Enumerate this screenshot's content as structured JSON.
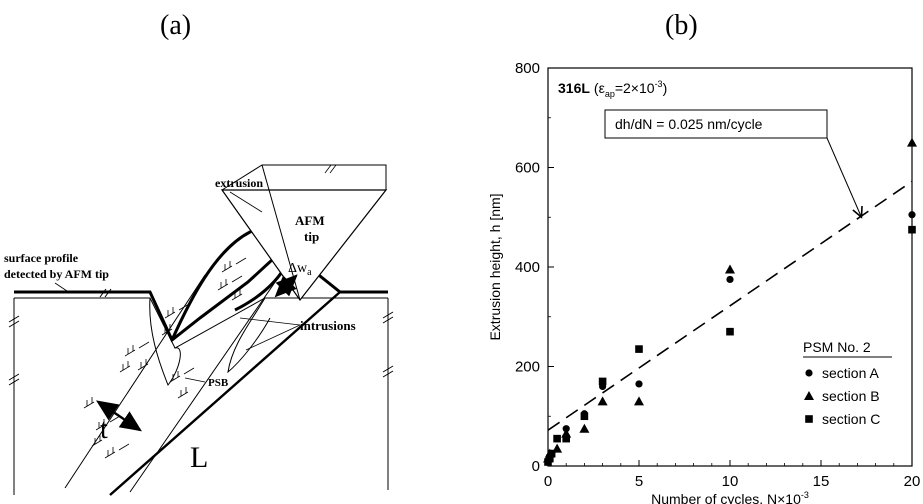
{
  "panels": {
    "a_label": "(a)",
    "b_label": "(b)"
  },
  "schematic": {
    "afm_tip": [
      "AFM",
      "tip"
    ],
    "extrusion": "extrusion",
    "surface_profile": [
      "surface profile",
      "detected by AFM tip"
    ],
    "delta_w": "Δw",
    "delta_w_sub": "a",
    "intrusions": "intrusions",
    "psb": "PSB",
    "t": "t",
    "L": "L"
  },
  "chart_data": {
    "type": "scatter",
    "title_material": "316L",
    "title_param_open": "(ε",
    "title_param_sub": "ap",
    "title_param_eq": "=2×10",
    "title_param_sup": "-3",
    "title_param_close": ")",
    "xlabel": "Number of cycles, N×10",
    "xlabel_sup": "-3",
    "ylabel": "Extrusion height, h [nm]",
    "xlim": [
      0,
      20
    ],
    "ylim": [
      0,
      800
    ],
    "xticks": [
      0,
      5,
      10,
      15,
      20
    ],
    "yticks": [
      0,
      200,
      400,
      600,
      800
    ],
    "legend_title": "PSM No. 2",
    "legend_position": "bottom-right",
    "series": [
      {
        "name": "section A",
        "marker": "circle",
        "x": [
          0,
          0.1,
          0.2,
          0.5,
          1,
          2,
          3,
          5,
          10,
          20
        ],
        "y": [
          10,
          20,
          25,
          55,
          75,
          105,
          160,
          165,
          375,
          505
        ]
      },
      {
        "name": "section B",
        "marker": "triangle",
        "x": [
          0,
          0.1,
          0.5,
          1,
          2,
          3,
          5,
          10,
          20
        ],
        "y": [
          15,
          25,
          35,
          65,
          75,
          130,
          130,
          395,
          650
        ]
      },
      {
        "name": "section C",
        "marker": "square",
        "x": [
          0,
          0.1,
          0.2,
          0.5,
          1,
          2,
          3,
          5,
          10,
          20
        ],
        "y": [
          8,
          15,
          25,
          55,
          55,
          100,
          170,
          235,
          270,
          475
        ]
      }
    ],
    "fit": {
      "label": "dh/dN = 0.025 nm/cycle",
      "x": [
        0,
        20
      ],
      "y": [
        72,
        572
      ],
      "style": "dashed"
    }
  }
}
